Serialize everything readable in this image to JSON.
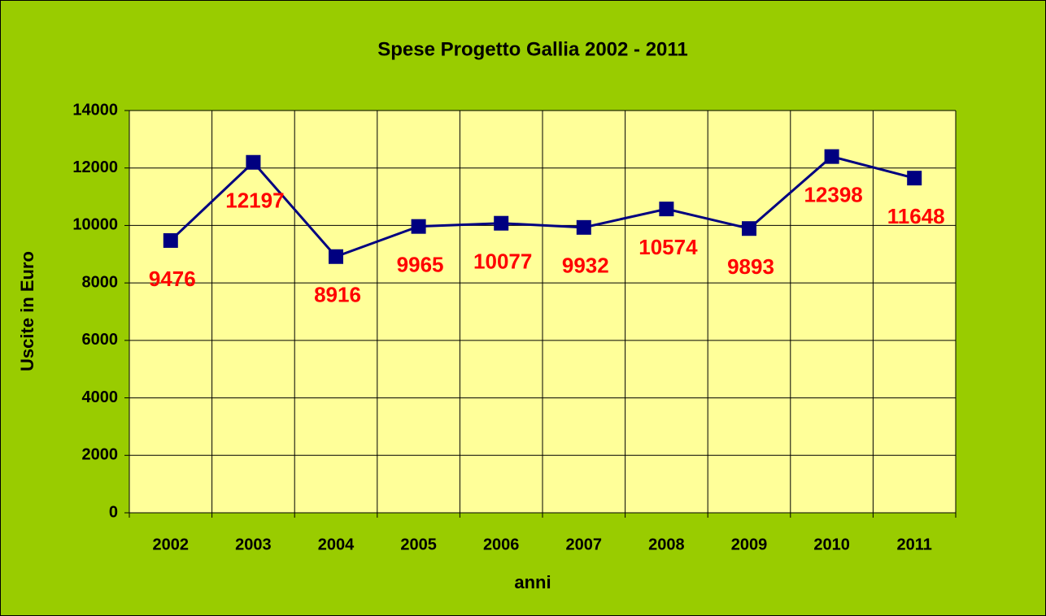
{
  "chart_data": {
    "type": "line",
    "title": "Spese Progetto Gallia 2002 - 2011",
    "xlabel": "anni",
    "ylabel": "Uscite in Euro",
    "categories": [
      "2002",
      "2003",
      "2004",
      "2005",
      "2006",
      "2007",
      "2008",
      "2009",
      "2010",
      "2011"
    ],
    "values": [
      9476,
      12197,
      8916,
      9965,
      10077,
      9932,
      10574,
      9893,
      12398,
      11648
    ],
    "color": "#000080",
    "label_color": "#ff0000",
    "ylim": [
      0,
      14000
    ],
    "yticks": [
      0,
      2000,
      4000,
      6000,
      8000,
      10000,
      12000,
      14000
    ],
    "grid": true
  }
}
